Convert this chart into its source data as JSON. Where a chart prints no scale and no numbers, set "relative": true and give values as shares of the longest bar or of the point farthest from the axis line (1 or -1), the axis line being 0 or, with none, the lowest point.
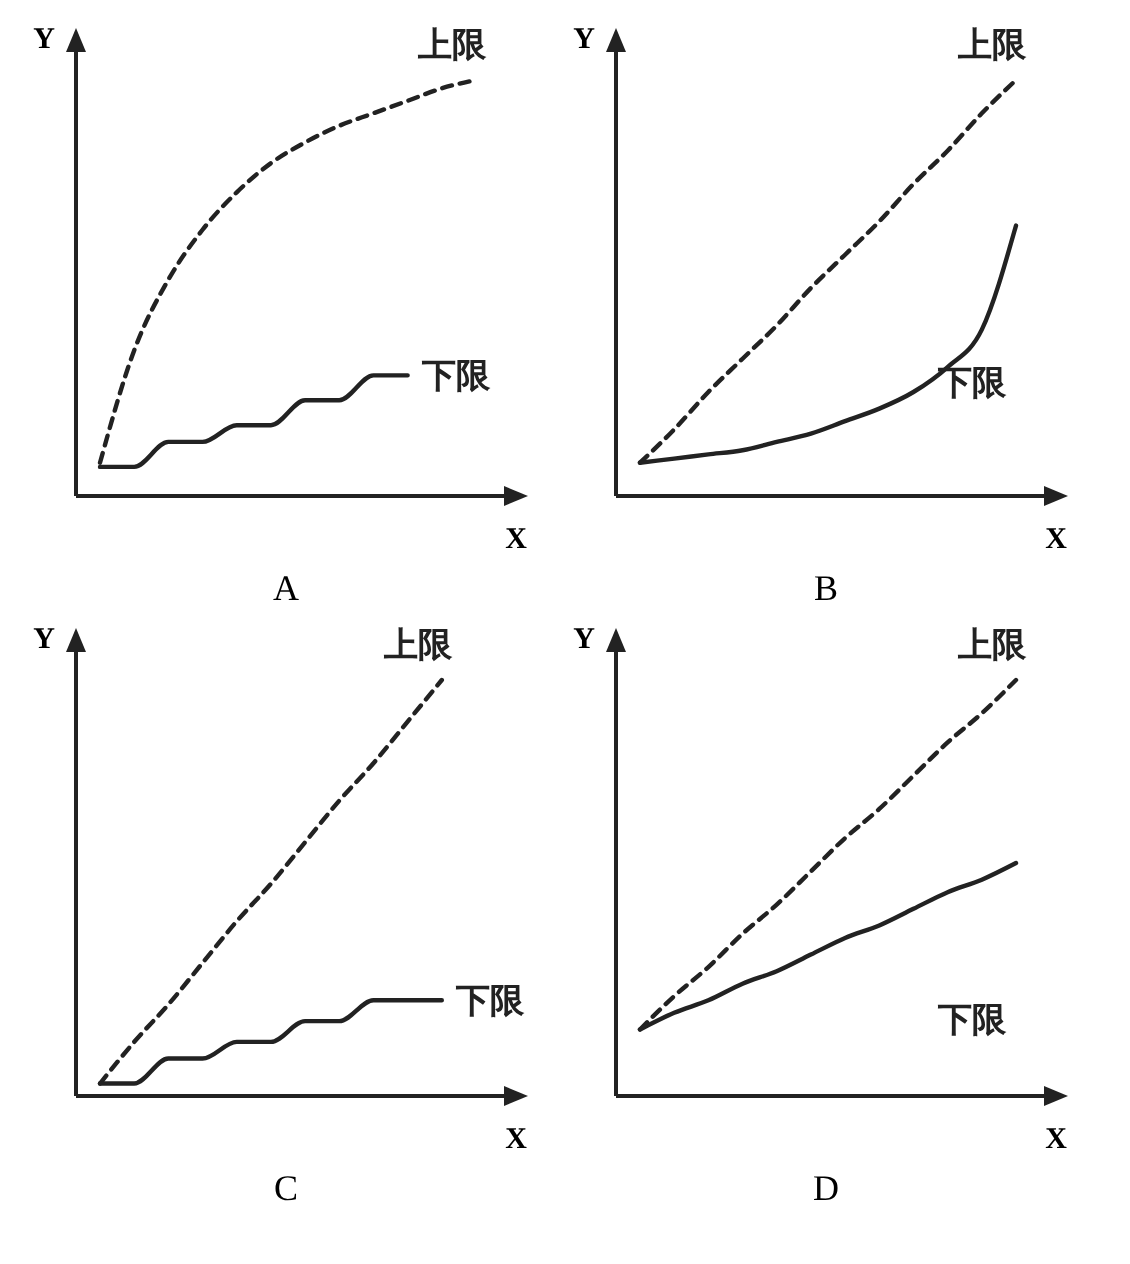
{
  "chart_data": [
    {
      "type": "line",
      "title": "A",
      "xlabel": "X",
      "ylabel": "Y",
      "relative": true,
      "legend": false,
      "categories": [
        null,
        null,
        null,
        null,
        null,
        null,
        null,
        null,
        null,
        null,
        null,
        null
      ],
      "series": [
        {
          "name": "上限",
          "color": "#222222",
          "line_style": "dashed",
          "values": [
            0.08,
            0.35,
            0.52,
            0.64,
            0.73,
            0.8,
            0.85,
            0.89,
            0.92,
            0.95,
            0.98,
            1.0
          ]
        },
        {
          "name": "下限",
          "color": "#222222",
          "line_style": "solid",
          "values": [
            0.07,
            0.07,
            0.13,
            0.13,
            0.17,
            0.17,
            0.23,
            0.23,
            0.29,
            0.29,
            null,
            null
          ]
        }
      ]
    },
    {
      "type": "line",
      "title": "B",
      "xlabel": "X",
      "ylabel": "Y",
      "relative": true,
      "legend": false,
      "categories": [
        null,
        null,
        null,
        null,
        null,
        null,
        null,
        null,
        null,
        null,
        null,
        null
      ],
      "series": [
        {
          "name": "上限",
          "color": "#222222",
          "line_style": "dashed",
          "values": [
            0.08,
            0.16,
            0.25,
            0.33,
            0.41,
            0.5,
            0.58,
            0.66,
            0.75,
            0.83,
            0.92,
            1.0
          ]
        },
        {
          "name": "下限",
          "color": "#222222",
          "line_style": "solid",
          "values": [
            0.08,
            0.09,
            0.1,
            0.11,
            0.13,
            0.15,
            0.18,
            0.21,
            0.25,
            0.31,
            0.4,
            0.65
          ]
        }
      ]
    },
    {
      "type": "line",
      "title": "C",
      "xlabel": "X",
      "ylabel": "Y",
      "relative": true,
      "legend": false,
      "categories": [
        null,
        null,
        null,
        null,
        null,
        null,
        null,
        null,
        null,
        null,
        null,
        null
      ],
      "series": [
        {
          "name": "上限",
          "color": "#222222",
          "line_style": "dashed",
          "values": [
            0.03,
            0.13,
            0.22,
            0.32,
            0.42,
            0.51,
            0.61,
            0.71,
            0.8,
            0.9,
            1.0,
            null
          ]
        },
        {
          "name": "下限",
          "color": "#222222",
          "line_style": "solid",
          "values": [
            0.03,
            0.03,
            0.09,
            0.09,
            0.13,
            0.13,
            0.18,
            0.18,
            0.23,
            0.23,
            0.23,
            null
          ]
        }
      ]
    },
    {
      "type": "line",
      "title": "D",
      "xlabel": "X",
      "ylabel": "Y",
      "relative": true,
      "legend": false,
      "categories": [
        null,
        null,
        null,
        null,
        null,
        null,
        null,
        null,
        null,
        null,
        null,
        null
      ],
      "series": [
        {
          "name": "上限",
          "color": "#222222",
          "line_style": "dashed",
          "values": [
            0.16,
            0.24,
            0.31,
            0.39,
            0.46,
            0.54,
            0.62,
            0.69,
            0.77,
            0.85,
            0.92,
            1.0
          ]
        },
        {
          "name": "下限",
          "color": "#222222",
          "line_style": "solid",
          "values": [
            0.16,
            0.2,
            0.23,
            0.27,
            0.3,
            0.34,
            0.38,
            0.41,
            0.45,
            0.49,
            0.52,
            0.56
          ]
        }
      ]
    }
  ]
}
